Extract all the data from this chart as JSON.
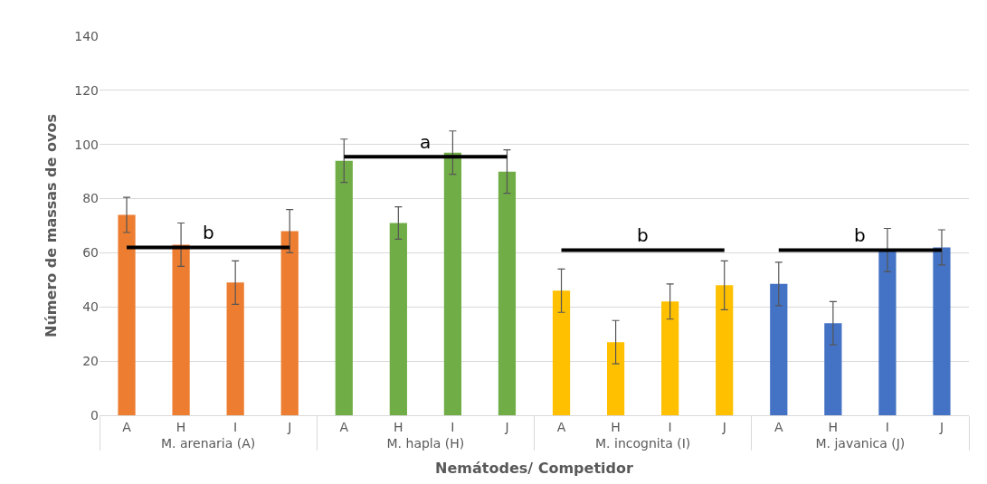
{
  "chart_data": {
    "type": "bar",
    "xlabel": "Nemátodes/ Competidor",
    "ylabel": "Número de massas de ovos",
    "categories": [
      "A",
      "H",
      "I",
      "J",
      "A",
      "H",
      "I",
      "J",
      "A",
      "H",
      "I",
      "J",
      "A",
      "H",
      "I",
      "J"
    ],
    "annotations": [
      "M. arenaria (A)",
      "M. hapla (H)",
      "M. incognita (I)",
      "M. javanica (J)"
    ],
    "series": [
      {
        "values": [
          74,
          63,
          49,
          68,
          94,
          71,
          97,
          90,
          46,
          27,
          42,
          48,
          48.5,
          34,
          61,
          62
        ],
        "colors": [
          "#ed7d31",
          "#ed7d31",
          "#ed7d31",
          "#ed7d31",
          "#70ad47",
          "#70ad47",
          "#70ad47",
          "#70ad47",
          "#ffc000",
          "#ffc000",
          "#ffc000",
          "#ffc000",
          "#4472c4",
          "#4472c4",
          "#4472c4",
          "#4472c4"
        ],
        "errors": [
          6.5,
          8,
          8,
          8,
          8,
          6,
          8,
          8,
          8,
          8,
          6.5,
          9,
          8,
          8,
          8,
          6.5
        ]
      },
      {
        "type": "line",
        "name": "b",
        "color": "#000000",
        "values": [
          62,
          62,
          62,
          62,
          null,
          null,
          null,
          null,
          null,
          null,
          null,
          null,
          null,
          null,
          null,
          null
        ]
      },
      {
        "type": "line",
        "name": "a",
        "color": "#000000",
        "values": [
          null,
          null,
          null,
          null,
          95.5,
          95.5,
          95.5,
          95.5,
          null,
          null,
          null,
          null,
          null,
          null,
          null,
          null
        ]
      },
      {
        "type": "line",
        "name": "b",
        "color": "#000000",
        "values": [
          null,
          null,
          null,
          null,
          null,
          null,
          null,
          null,
          61,
          61,
          61,
          61,
          null,
          null,
          null,
          null
        ]
      },
      {
        "type": "line",
        "name": "b",
        "color": "#000000",
        "values": [
          null,
          null,
          null,
          null,
          null,
          null,
          null,
          null,
          null,
          null,
          null,
          null,
          61,
          61,
          61,
          61
        ]
      }
    ],
    "ylim": [
      0,
      140
    ],
    "yticks": [
      0,
      20,
      40,
      60,
      80,
      100,
      120,
      140
    ],
    "grid": "y"
  }
}
